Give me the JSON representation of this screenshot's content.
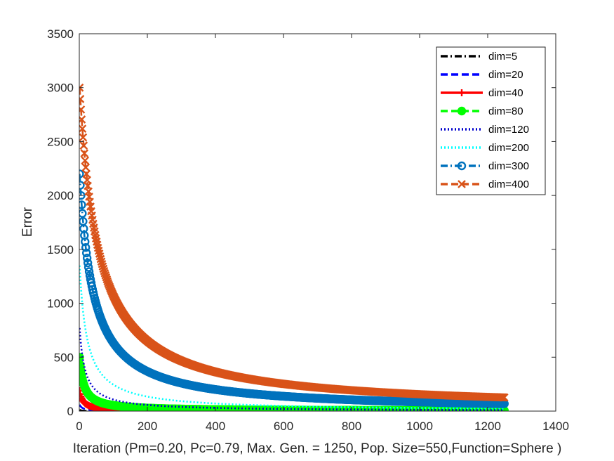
{
  "chart_data": {
    "type": "line",
    "title": "",
    "xlabel": "Iteration  (Pm=0.20, Pc=0.79, Max. Gen. = 1250, Pop. Size=550,Function=Sphere )",
    "ylabel": "Error",
    "xlim": [
      0,
      1400
    ],
    "ylim": [
      0,
      3500
    ],
    "xticks": [
      0,
      200,
      400,
      600,
      800,
      1000,
      1200,
      1400
    ],
    "yticks": [
      0,
      500,
      1000,
      1500,
      2000,
      2500,
      3000,
      3500
    ],
    "xtick_labels": [
      "0",
      "200",
      "400",
      "600",
      "800",
      "1000",
      "1200",
      "1400"
    ],
    "ytick_labels": [
      "0",
      "500",
      "1000",
      "1500",
      "2000",
      "2500",
      "3000",
      "3500"
    ],
    "grid": false,
    "legend_position": "top-right",
    "max_iteration": 1250,
    "series": [
      {
        "name": "dim=5",
        "label": "dim=5",
        "color": "#000000",
        "line": "dashdot",
        "marker": "none",
        "start": 12,
        "decay": 6
      },
      {
        "name": "dim=20",
        "label": "dim=20",
        "color": "#0000ff",
        "line": "dashed",
        "marker": "none",
        "start": 60,
        "decay": 8
      },
      {
        "name": "dim=40",
        "label": "dim=40",
        "color": "#ff0000",
        "line": "solid",
        "marker": "plus",
        "start": 190,
        "decay": 10
      },
      {
        "name": "dim=80",
        "label": "dim=80",
        "color": "#00ff00",
        "line": "dashed",
        "marker": "circle",
        "start": 500,
        "decay": 12
      },
      {
        "name": "dim=120",
        "label": "dim=120",
        "color": "#0000cd",
        "line": "dotted",
        "marker": "none",
        "start": 770,
        "decay": 16
      },
      {
        "name": "dim=200",
        "label": "dim=200",
        "color": "#00ffff",
        "line": "dotted",
        "marker": "none",
        "start": 1350,
        "decay": 22
      },
      {
        "name": "dim=300",
        "label": "dim=300",
        "color": "#0072bd",
        "line": "dashdot",
        "marker": "circle",
        "start": 2200,
        "decay": 40
      },
      {
        "name": "dim=400",
        "label": "dim=400",
        "color": "#d95319",
        "line": "dashed",
        "marker": "x",
        "start": 3000,
        "decay": 55
      }
    ]
  }
}
